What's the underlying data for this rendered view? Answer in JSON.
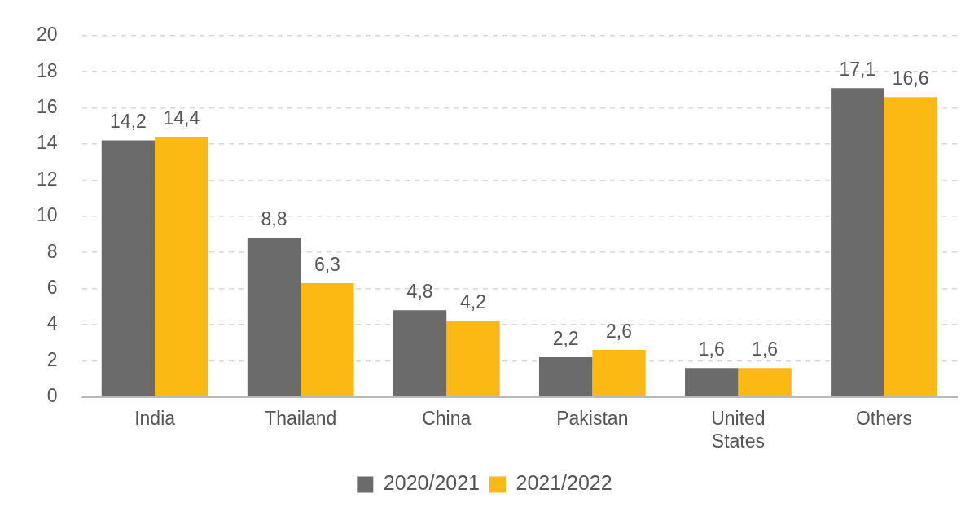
{
  "chart_data": {
    "type": "bar",
    "categories": [
      "India",
      "Thailand",
      "China",
      "Pakistan",
      "United States",
      "Others"
    ],
    "series": [
      {
        "name": "2020/2021",
        "color": "#6b6b6b",
        "values": [
          14.2,
          8.8,
          4.8,
          2.2,
          1.6,
          17.1
        ],
        "value_labels": [
          "14,2",
          "8,8",
          "4,8",
          "2,2",
          "1,6",
          "17,1"
        ]
      },
      {
        "name": "2021/2022",
        "color": "#fdb913",
        "values": [
          14.4,
          6.3,
          4.2,
          2.6,
          1.6,
          16.6
        ],
        "value_labels": [
          "14,4",
          "6,3",
          "4,2",
          "2,6",
          "1,6",
          "16,6"
        ]
      }
    ],
    "ylim": [
      0,
      20
    ],
    "yticks": [
      0,
      2,
      4,
      6,
      8,
      10,
      12,
      14,
      16,
      18,
      20
    ],
    "grid": "y",
    "legend": "bottom"
  }
}
